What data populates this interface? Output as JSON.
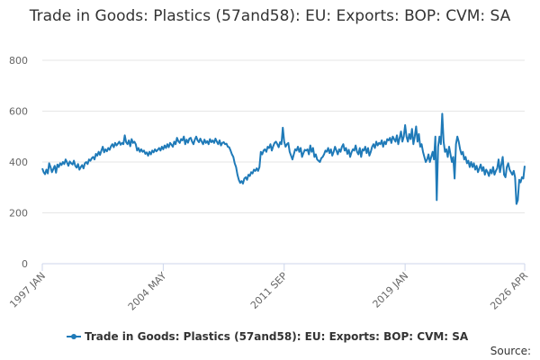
{
  "chart_data": {
    "type": "line",
    "title": "Trade in Goods: Plastics (57and58): EU: Exports: BOP: CVM: SA",
    "source_label": "Source:",
    "categories": [
      "1997 JAN",
      null,
      null,
      null,
      null,
      null,
      null,
      null,
      null,
      null,
      null,
      null,
      null,
      null,
      null,
      null,
      null,
      null,
      null,
      null,
      null,
      null,
      null,
      null,
      null,
      null,
      null,
      null,
      null,
      null,
      null,
      null,
      null,
      null,
      null,
      null,
      null,
      null,
      null,
      null,
      null,
      null,
      null,
      null,
      null,
      null,
      null,
      null,
      null,
      null,
      null,
      null,
      null,
      null,
      null,
      null,
      null,
      null,
      null,
      null,
      null,
      null,
      null,
      null,
      null,
      null,
      null,
      null,
      null,
      null,
      null,
      null,
      null,
      null,
      null,
      null,
      null,
      null,
      null,
      null,
      null,
      null,
      null,
      null,
      null,
      null,
      null,
      null,
      "2004 MAY",
      null,
      null,
      null,
      null,
      null,
      null,
      null,
      null,
      null,
      null,
      null,
      null,
      null,
      null,
      null,
      null,
      null,
      null,
      null,
      null,
      null,
      null,
      null,
      null,
      null,
      null,
      null,
      null,
      null,
      null,
      null,
      null,
      null,
      null,
      null,
      null,
      null,
      null,
      null,
      null,
      null,
      null,
      null,
      null,
      null,
      null,
      null,
      null,
      null,
      null,
      null,
      null,
      null,
      null,
      null,
      null,
      null,
      null,
      null,
      null,
      null,
      null,
      null,
      null,
      null,
      null,
      null,
      null,
      null,
      null,
      null,
      null,
      null,
      null,
      null,
      null,
      null,
      null,
      null,
      null,
      null,
      null,
      null,
      null,
      null,
      null,
      null,
      "2011 SEP",
      null,
      null,
      null,
      null,
      null,
      null,
      null,
      null,
      null,
      null,
      null,
      null,
      null,
      null,
      null,
      null,
      null,
      null,
      null,
      null,
      null,
      null,
      null,
      null,
      null,
      null,
      null,
      null,
      null,
      null,
      null,
      null,
      null,
      null,
      null,
      null,
      null,
      null,
      null,
      null,
      null,
      null,
      null,
      null,
      null,
      null,
      null,
      null,
      null,
      null,
      null,
      null,
      null,
      null,
      null,
      null,
      null,
      null,
      null,
      null,
      null,
      null,
      null,
      null,
      null,
      null,
      null,
      null,
      null,
      null,
      null,
      null,
      null,
      null,
      null,
      null,
      null,
      null,
      null,
      null,
      null,
      null,
      null,
      null,
      null,
      null,
      null,
      "2019 JAN",
      null,
      null,
      null,
      null,
      null,
      null,
      null,
      null,
      null,
      null,
      null,
      null,
      null,
      null,
      null,
      null,
      null,
      null,
      null,
      null,
      null,
      null,
      null,
      null,
      null,
      null,
      null,
      null,
      null,
      null,
      null,
      null,
      null,
      null,
      null,
      null,
      null,
      null,
      null,
      null,
      null,
      null,
      null,
      null,
      null,
      null,
      null,
      null,
      null,
      null,
      null,
      null,
      null,
      null,
      null,
      null,
      null,
      null,
      null,
      null,
      null,
      null,
      null,
      null,
      null,
      null,
      null,
      null,
      null,
      null,
      null,
      null,
      null,
      null,
      null,
      null,
      null,
      null,
      null,
      null,
      null,
      null,
      null,
      null,
      null,
      null,
      "2026 APR"
    ],
    "series": [
      {
        "name": "Trade in Goods: Plastics (57and58): EU: Exports: BOP: CVM: SA",
        "color": "#1f7ab8",
        "values": [
          375,
          360,
          352,
          370,
          355,
          395,
          380,
          360,
          372,
          385,
          358,
          390,
          380,
          395,
          388,
          400,
          392,
          410,
          398,
          385,
          402,
          395,
          390,
          405,
          385,
          378,
          392,
          370,
          380,
          388,
          375,
          395,
          400,
          392,
          410,
          405,
          415,
          420,
          410,
          432,
          425,
          440,
          428,
          445,
          460,
          438,
          450,
          442,
          455,
          448,
          462,
          470,
          458,
          475,
          465,
          472,
          480,
          468,
          475,
          470,
          505,
          478,
          470,
          485,
          462,
          490,
          475,
          480,
          470,
          445,
          455,
          440,
          450,
          440,
          445,
          432,
          438,
          425,
          440,
          430,
          445,
          438,
          450,
          442,
          448,
          455,
          445,
          460,
          450,
          465,
          455,
          470,
          458,
          475,
          468,
          460,
          480,
          470,
          495,
          482,
          475,
          490,
          485,
          500,
          470,
          488,
          476,
          492,
          495,
          480,
          470,
          488,
          500,
          485,
          478,
          492,
          480,
          470,
          488,
          475,
          482,
          470,
          490,
          478,
          485,
          475,
          492,
          480,
          470,
          485,
          465,
          475,
          478,
          470,
          472,
          460,
          458,
          445,
          430,
          420,
          395,
          380,
          350,
          330,
          318,
          325,
          315,
          335,
          340,
          330,
          350,
          345,
          360,
          355,
          370,
          365,
          375,
          365,
          380,
          440,
          430,
          445,
          450,
          440,
          460,
          455,
          470,
          445,
          462,
          475,
          480,
          470,
          458,
          478,
          470,
          535,
          480,
          460,
          470,
          475,
          440,
          425,
          410,
          430,
          450,
          445,
          460,
          440,
          455,
          420,
          435,
          448,
          445,
          450,
          430,
          465,
          440,
          455,
          420,
          430,
          410,
          405,
          400,
          415,
          420,
          430,
          445,
          440,
          455,
          435,
          450,
          425,
          440,
          460,
          445,
          430,
          450,
          440,
          460,
          470,
          445,
          455,
          432,
          448,
          420,
          438,
          450,
          445,
          465,
          440,
          430,
          455,
          420,
          450,
          445,
          460,
          435,
          455,
          425,
          440,
          460,
          470,
          455,
          480,
          465,
          475,
          470,
          485,
          460,
          480,
          470,
          490,
          485,
          495,
          475,
          500,
          490,
          480,
          505,
          470,
          495,
          520,
          480,
          500,
          545,
          500,
          480,
          510,
          490,
          530,
          470,
          500,
          540,
          480,
          510,
          460,
          470,
          440,
          420,
          400,
          410,
          430,
          400,
          420,
          440,
          410,
          500,
          250,
          460,
          500,
          470,
          590,
          480,
          440,
          450,
          420,
          460,
          430,
          400,
          420,
          335,
          470,
          500,
          480,
          450,
          430,
          440,
          410,
          420,
          395,
          405,
          380,
          400,
          380,
          395,
          370,
          385,
          360,
          375,
          390,
          365,
          380,
          350,
          370,
          360,
          345,
          370,
          355,
          380,
          350,
          365,
          375,
          410,
          360,
          390,
          420,
          350,
          340,
          380,
          395,
          370,
          360,
          350,
          365,
          340,
          235,
          250,
          330,
          320,
          340,
          335,
          385
        ]
      }
    ],
    "ylim": [
      0,
      800
    ],
    "yticks": [
      0,
      200,
      400,
      600,
      800
    ],
    "grid": true
  }
}
